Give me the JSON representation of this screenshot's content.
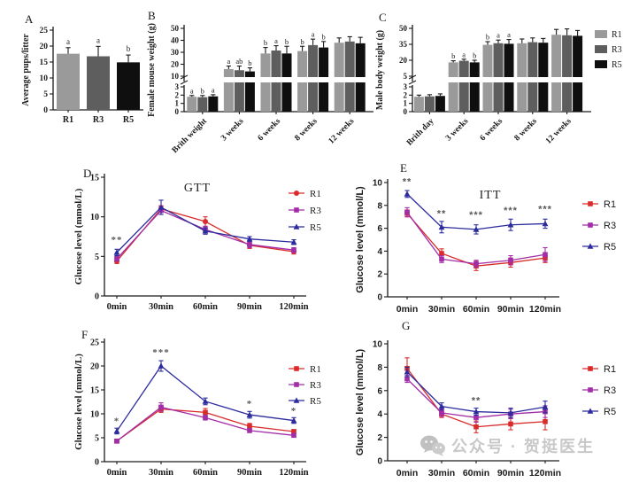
{
  "watermark": {
    "text": "公众号 · 贺挺医生",
    "icon": "wechat-chat-bubbles-icon"
  },
  "colors": {
    "r1_line": "#d92b2b",
    "r3_line": "#a32ca8",
    "r5_line": "#2b2b9e",
    "r1_bar": "#9a9a9a",
    "r3_bar": "#5e5e5e",
    "r5_bar": "#0f0f0f",
    "stars": "#595959",
    "axis": "#1a1a1a",
    "letters": "#1a1a1a"
  },
  "chart_data": [
    {
      "id": "A",
      "letter": "A",
      "type": "bar",
      "ylabel": "Average pups/litter",
      "categories": [
        "R1",
        "R3",
        "R5"
      ],
      "values": [
        17.6,
        16.8,
        14.9
      ],
      "errors": [
        1.9,
        3.1,
        2.3
      ],
      "sig_letters": [
        "a",
        "a",
        "b"
      ],
      "ylim": [
        0,
        25
      ],
      "yticks": [
        0,
        5,
        10,
        15,
        20,
        25
      ]
    },
    {
      "id": "B",
      "letter": "B",
      "type": "broken-bar",
      "ylabel": "Female mouse weight (g)",
      "categories": [
        "Brith weight",
        "3 weeks",
        "6 weeks",
        "8 weeks",
        "12 weeks"
      ],
      "series": [
        {
          "name": "R1",
          "values": [
            1.8,
            16,
            29,
            31,
            38
          ],
          "errors": [
            0.15,
            2.5,
            5,
            4,
            4
          ]
        },
        {
          "name": "R3",
          "values": [
            1.75,
            15,
            31.5,
            36,
            39
          ],
          "errors": [
            0.2,
            3.5,
            4,
            5,
            4
          ]
        },
        {
          "name": "R5",
          "values": [
            1.85,
            14,
            29,
            34,
            37.5
          ],
          "errors": [
            0.2,
            3,
            6,
            5,
            5
          ]
        }
      ],
      "sig_letters": [
        [
          "a",
          "b",
          "a"
        ],
        [
          "a",
          "ab",
          "b"
        ],
        [
          "b",
          "a",
          "b"
        ],
        [
          "b",
          "a",
          "b"
        ],
        [
          "",
          "",
          ""
        ]
      ],
      "lower_lim": [
        0,
        3
      ],
      "lower_ticks": [
        0,
        1,
        2,
        3
      ],
      "upper_ticks": [
        10,
        20,
        30,
        40,
        50
      ]
    },
    {
      "id": "C",
      "letter": "C",
      "type": "broken-bar",
      "ylabel": "Male body weight (g)",
      "categories": [
        "Brith day",
        "3 weeks",
        "6 weeks",
        "8 weeks",
        "12 weeks"
      ],
      "series": [
        {
          "name": "R1",
          "values": [
            1.8,
            18,
            34.5,
            36,
            44
          ],
          "errors": [
            0.2,
            1.5,
            3,
            4,
            5
          ]
        },
        {
          "name": "R3",
          "values": [
            1.85,
            19.5,
            36,
            37,
            43.5
          ],
          "errors": [
            0.2,
            1.5,
            3,
            4,
            6
          ]
        },
        {
          "name": "R5",
          "values": [
            1.9,
            18,
            35.5,
            36.5,
            43
          ],
          "errors": [
            0.25,
            2,
            4,
            4,
            5
          ]
        }
      ],
      "sig_letters": [
        [
          "",
          "",
          ""
        ],
        [
          "b",
          "a",
          "b"
        ],
        [
          "b",
          "a",
          "a"
        ],
        [
          "",
          "",
          ""
        ],
        [
          "",
          "",
          ""
        ]
      ],
      "lower_lim": [
        0,
        3
      ],
      "lower_ticks": [
        0,
        1,
        2,
        3
      ],
      "upper_ticks": [
        5,
        20,
        35,
        50
      ],
      "legend": [
        "R1",
        "R3",
        "R5"
      ]
    },
    {
      "id": "D",
      "letter": "D",
      "type": "line",
      "title": "GTT",
      "ylabel": "Glucose level (mmol/L)",
      "x": [
        "0min",
        "30min",
        "60min",
        "90min",
        "120min"
      ],
      "ylim": [
        0,
        15
      ],
      "yticks": [
        0,
        5,
        10,
        15
      ],
      "series": [
        {
          "name": "R1",
          "marker": "circle",
          "values": [
            4.4,
            11.0,
            9.4,
            6.4,
            5.6
          ],
          "errors": [
            0.3,
            0.4,
            0.6,
            0.4,
            0.3
          ]
        },
        {
          "name": "R3",
          "marker": "square",
          "values": [
            4.7,
            10.8,
            8.4,
            6.5,
            5.8
          ],
          "errors": [
            0.3,
            0.5,
            0.4,
            0.4,
            0.3
          ]
        },
        {
          "name": "R5",
          "marker": "triangle",
          "values": [
            5.5,
            11.2,
            8.2,
            7.2,
            6.8
          ],
          "errors": [
            0.4,
            0.9,
            0.4,
            0.3,
            0.3
          ]
        }
      ],
      "annotations": [
        {
          "x_index": 0,
          "y": 6.7,
          "text": "**"
        }
      ],
      "legend": [
        "R1",
        "R3",
        "R5"
      ]
    },
    {
      "id": "E",
      "letter": "E",
      "type": "line",
      "title": "ITT",
      "ylabel": "Glucose level (mmol/L)",
      "x": [
        "0min",
        "30min",
        "60min",
        "90min",
        "120min"
      ],
      "ylim": [
        0,
        10
      ],
      "yticks": [
        0,
        2,
        4,
        6,
        8,
        10
      ],
      "series": [
        {
          "name": "R1",
          "marker": "square",
          "values": [
            7.3,
            3.8,
            2.7,
            3.0,
            3.4
          ],
          "errors": [
            0.3,
            0.4,
            0.4,
            0.4,
            0.4
          ]
        },
        {
          "name": "R3",
          "marker": "square",
          "values": [
            7.4,
            3.3,
            2.9,
            3.2,
            3.7
          ],
          "errors": [
            0.4,
            0.3,
            0.3,
            0.4,
            0.6
          ]
        },
        {
          "name": "R5",
          "marker": "triangle",
          "values": [
            9.0,
            6.1,
            5.9,
            6.3,
            6.4
          ],
          "errors": [
            0.3,
            0.5,
            0.4,
            0.5,
            0.4
          ]
        }
      ],
      "annotations": [
        {
          "x_index": 0,
          "y": 9.8,
          "text": "**"
        },
        {
          "x_index": 1,
          "y": 7.0,
          "text": "**"
        },
        {
          "x_index": 2,
          "y": 6.9,
          "text": "***"
        },
        {
          "x_index": 3,
          "y": 7.3,
          "text": "***"
        },
        {
          "x_index": 4,
          "y": 7.4,
          "text": "***"
        }
      ],
      "legend": [
        "R1",
        "R3",
        "R5"
      ]
    },
    {
      "id": "F",
      "letter": "F",
      "type": "line",
      "title": "",
      "ylabel": "Glucose level (mmol/L)",
      "x": [
        "0min",
        "30min",
        "60min",
        "90min",
        "120min"
      ],
      "ylim": [
        0,
        25
      ],
      "yticks": [
        0,
        5,
        10,
        15,
        20,
        25
      ],
      "series": [
        {
          "name": "R1",
          "marker": "square",
          "values": [
            4.3,
            11.0,
            10.3,
            7.4,
            6.3
          ],
          "errors": [
            0.3,
            0.7,
            0.8,
            0.6,
            0.4
          ]
        },
        {
          "name": "R3",
          "marker": "square",
          "values": [
            4.3,
            11.4,
            9.2,
            6.5,
            5.5
          ],
          "errors": [
            0.3,
            0.9,
            0.5,
            0.4,
            0.3
          ]
        },
        {
          "name": "R5",
          "marker": "triangle",
          "values": [
            6.4,
            20.0,
            12.6,
            9.8,
            8.6
          ],
          "errors": [
            0.6,
            1.1,
            0.7,
            0.7,
            0.6
          ]
        }
      ],
      "annotations": [
        {
          "x_index": 0,
          "y": 7.9,
          "text": "*"
        },
        {
          "x_index": 1,
          "y": 22.2,
          "text": "***"
        },
        {
          "x_index": 3,
          "y": 11.5,
          "text": "*"
        },
        {
          "x_index": 4,
          "y": 10.0,
          "text": "*"
        }
      ],
      "legend": [
        "R1",
        "R3",
        "R5"
      ]
    },
    {
      "id": "G",
      "letter": "G",
      "type": "line",
      "title": "",
      "ylabel": "Glucose level (mmol/L)",
      "x": [
        "0min",
        "30min",
        "60min",
        "90min",
        "120min"
      ],
      "ylim": [
        0,
        10
      ],
      "yticks": [
        0,
        2,
        4,
        6,
        8,
        10
      ],
      "series": [
        {
          "name": "R1",
          "marker": "square",
          "values": [
            7.9,
            4.0,
            2.9,
            3.15,
            3.35
          ],
          "errors": [
            0.9,
            0.3,
            0.5,
            0.5,
            0.7
          ]
        },
        {
          "name": "R3",
          "marker": "square",
          "values": [
            7.0,
            4.1,
            3.7,
            4.0,
            4.2
          ],
          "errors": [
            0.3,
            0.3,
            0.4,
            0.4,
            0.5
          ]
        },
        {
          "name": "R5",
          "marker": "triangle",
          "values": [
            7.6,
            4.65,
            4.2,
            4.1,
            4.6
          ],
          "errors": [
            0.4,
            0.3,
            0.3,
            0.4,
            0.5
          ]
        }
      ],
      "annotations": [
        {
          "x_index": 2,
          "y": 4.9,
          "text": "**"
        }
      ],
      "legend": [
        "R1",
        "R3",
        "R5"
      ]
    }
  ]
}
